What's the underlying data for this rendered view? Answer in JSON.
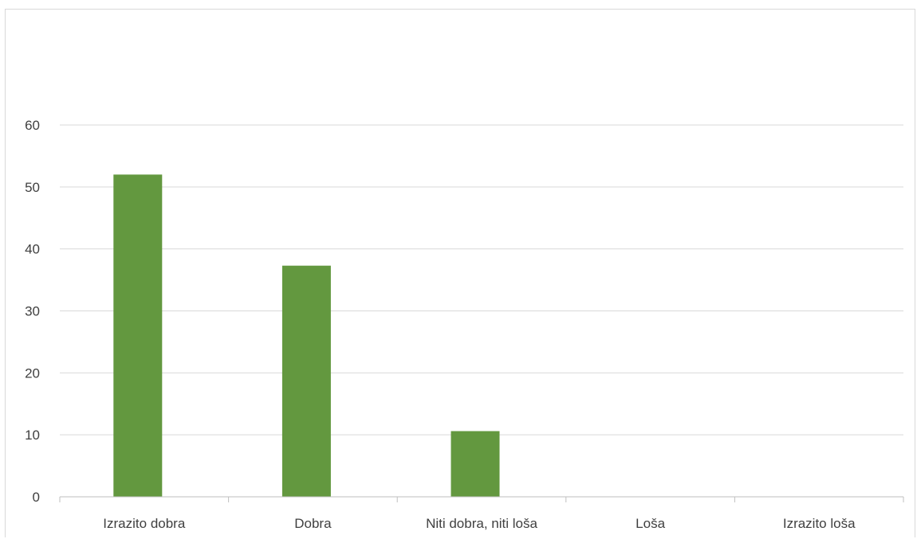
{
  "chart_data": {
    "type": "bar",
    "title": "",
    "xlabel": "",
    "ylabel": "",
    "categories": [
      "Izrazito dobra",
      "Dobra",
      "Niti dobra, niti loša",
      "Loša",
      "Izrazito loša"
    ],
    "values": [
      52,
      37.3,
      10.6,
      0,
      0
    ],
    "ylim": [
      0,
      60
    ],
    "yticks": [
      0,
      10,
      20,
      30,
      40,
      50,
      60
    ],
    "grid": true,
    "legend": "none",
    "bar_color": "#63983f",
    "gridline_color": "#d9d9d9",
    "axis_color": "#bfbfbf",
    "label_color": "#404040"
  }
}
